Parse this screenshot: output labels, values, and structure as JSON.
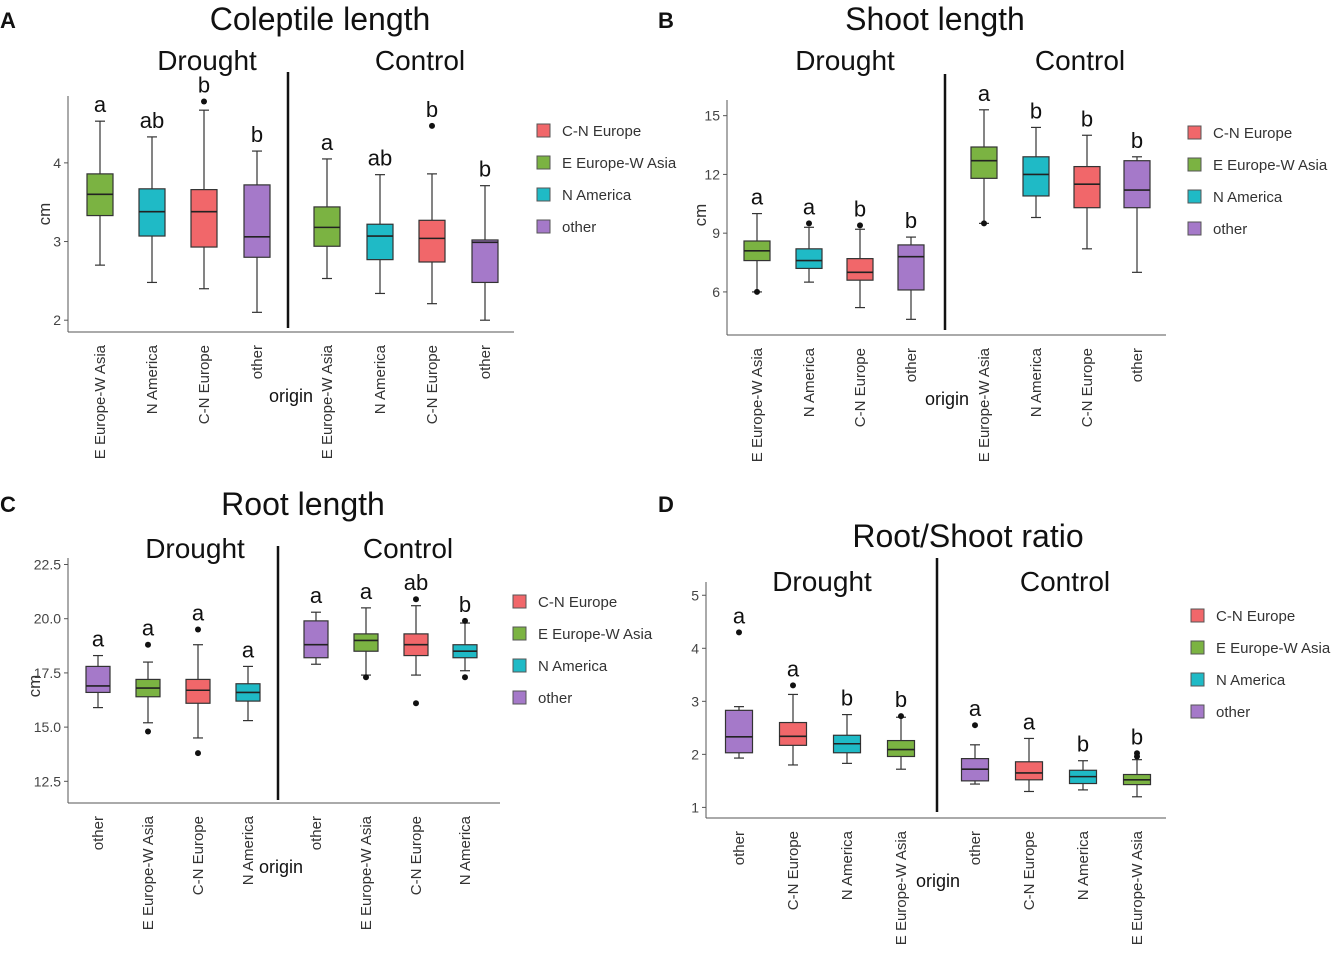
{
  "figure": {
    "group_labels": [
      "Drought",
      "Control"
    ],
    "x_axis_label": "origin",
    "y_axis_label": "cm",
    "legend_entries": [
      "C-N Europe",
      "E Europe-W Asia",
      "N America",
      "other"
    ]
  },
  "colors": {
    "C-N Europe": "#f1676a",
    "E Europe-W Asia": "#7bb342",
    "N America": "#1fbac6",
    "other": "#a579c9"
  },
  "chart_data": [
    {
      "panel": "A",
      "type": "boxplot",
      "title": "Coleptile length",
      "xlabel": "origin",
      "ylabel": "cm",
      "ylim": [
        1.85,
        4.85
      ],
      "yticks": [
        2,
        3,
        4
      ],
      "ytick_labels": [
        "2",
        "3",
        "4"
      ],
      "legend": [
        "C-N Europe",
        "E Europe-W Asia",
        "N America",
        "other"
      ],
      "groups": [
        {
          "name": "Drought",
          "boxes": [
            {
              "category": "E Europe-W Asia",
              "min": 2.7,
              "q1": 3.33,
              "median": 3.6,
              "q3": 3.86,
              "max": 4.53,
              "outliers": [],
              "sig": "a"
            },
            {
              "category": "N America",
              "min": 2.48,
              "q1": 3.07,
              "median": 3.38,
              "q3": 3.67,
              "max": 4.33,
              "outliers": [],
              "sig": "ab"
            },
            {
              "category": "C-N Europe",
              "min": 2.4,
              "q1": 2.93,
              "median": 3.38,
              "q3": 3.66,
              "max": 4.67,
              "outliers": [
                4.78
              ],
              "sig": "b"
            },
            {
              "category": "other",
              "min": 2.1,
              "q1": 2.8,
              "median": 3.06,
              "q3": 3.72,
              "max": 4.15,
              "outliers": [],
              "sig": "b"
            }
          ]
        },
        {
          "name": "Control",
          "boxes": [
            {
              "category": "E Europe-W Asia",
              "min": 2.53,
              "q1": 2.94,
              "median": 3.18,
              "q3": 3.44,
              "max": 4.05,
              "outliers": [],
              "sig": "a"
            },
            {
              "category": "N America",
              "min": 2.34,
              "q1": 2.77,
              "median": 3.07,
              "q3": 3.22,
              "max": 3.85,
              "outliers": [],
              "sig": "ab"
            },
            {
              "category": "C-N Europe",
              "min": 2.21,
              "q1": 2.74,
              "median": 3.04,
              "q3": 3.27,
              "max": 3.86,
              "outliers": [
                4.47
              ],
              "sig": "b"
            },
            {
              "category": "other",
              "min": 2.0,
              "q1": 2.48,
              "median": 2.99,
              "q3": 3.02,
              "max": 3.71,
              "outliers": [],
              "sig": "b"
            }
          ]
        }
      ]
    },
    {
      "panel": "B",
      "type": "boxplot",
      "title": "Shoot length",
      "xlabel": "origin",
      "ylabel": "cm",
      "ylim": [
        3.8,
        15.8
      ],
      "yticks": [
        6,
        9,
        12,
        15
      ],
      "ytick_labels": [
        "6",
        "9",
        "12",
        "15"
      ],
      "legend": [
        "C-N Europe",
        "E Europe-W Asia",
        "N America",
        "other"
      ],
      "groups": [
        {
          "name": "Drought",
          "boxes": [
            {
              "category": "E Europe-W Asia",
              "min": 6.0,
              "q1": 7.6,
              "median": 8.1,
              "q3": 8.6,
              "max": 10.0,
              "outliers": [
                6.0
              ],
              "sig": "a"
            },
            {
              "category": "N America",
              "min": 6.5,
              "q1": 7.2,
              "median": 7.6,
              "q3": 8.2,
              "max": 9.3,
              "outliers": [
                9.5
              ],
              "sig": "a"
            },
            {
              "category": "C-N Europe",
              "min": 5.2,
              "q1": 6.6,
              "median": 7.0,
              "q3": 7.7,
              "max": 9.2,
              "outliers": [
                9.4
              ],
              "sig": "b"
            },
            {
              "category": "other",
              "min": 4.6,
              "q1": 6.1,
              "median": 7.8,
              "q3": 8.4,
              "max": 8.8,
              "outliers": [],
              "sig": "b"
            }
          ]
        },
        {
          "name": "Control",
          "boxes": [
            {
              "category": "E Europe-W Asia",
              "min": 9.5,
              "q1": 11.8,
              "median": 12.7,
              "q3": 13.4,
              "max": 15.3,
              "outliers": [
                9.5
              ],
              "sig": "a"
            },
            {
              "category": "N America",
              "min": 9.8,
              "q1": 10.9,
              "median": 12.0,
              "q3": 12.9,
              "max": 14.4,
              "outliers": [],
              "sig": "b"
            },
            {
              "category": "C-N Europe",
              "min": 8.2,
              "q1": 10.3,
              "median": 11.5,
              "q3": 12.4,
              "max": 14.0,
              "outliers": [],
              "sig": "b"
            },
            {
              "category": "other",
              "min": 7.0,
              "q1": 10.3,
              "median": 11.2,
              "q3": 12.7,
              "max": 12.9,
              "outliers": [],
              "sig": "b"
            }
          ]
        }
      ]
    },
    {
      "panel": "C",
      "type": "boxplot",
      "title": "Root length",
      "xlabel": "origin",
      "ylabel": "cm",
      "ylim": [
        11.5,
        22.8
      ],
      "yticks": [
        12.5,
        15.0,
        17.5,
        20.0,
        22.5
      ],
      "ytick_labels": [
        "12.5",
        "15.0",
        "17.5",
        "20.0",
        "22.5"
      ],
      "legend": [
        "C-N Europe",
        "E Europe-W Asia",
        "N America",
        "other"
      ],
      "groups": [
        {
          "name": "Drought",
          "boxes": [
            {
              "category": "other",
              "min": 15.9,
              "q1": 16.6,
              "median": 16.9,
              "q3": 17.8,
              "max": 18.3,
              "outliers": [],
              "sig": "a"
            },
            {
              "category": "E Europe-W Asia",
              "min": 15.2,
              "q1": 16.4,
              "median": 16.8,
              "q3": 17.2,
              "max": 18.0,
              "outliers": [
                18.8,
                14.8
              ],
              "sig": "a"
            },
            {
              "category": "C-N Europe",
              "min": 14.5,
              "q1": 16.1,
              "median": 16.7,
              "q3": 17.2,
              "max": 18.8,
              "outliers": [
                19.5,
                13.8
              ],
              "sig": "a"
            },
            {
              "category": "N America",
              "min": 15.3,
              "q1": 16.2,
              "median": 16.6,
              "q3": 17.0,
              "max": 17.8,
              "outliers": [],
              "sig": "a"
            }
          ]
        },
        {
          "name": "Control",
          "boxes": [
            {
              "category": "other",
              "min": 17.9,
              "q1": 18.2,
              "median": 18.8,
              "q3": 19.9,
              "max": 20.3,
              "outliers": [],
              "sig": "a"
            },
            {
              "category": "E Europe-W Asia",
              "min": 17.4,
              "q1": 18.5,
              "median": 19.0,
              "q3": 19.3,
              "max": 20.5,
              "outliers": [
                17.3
              ],
              "sig": "a"
            },
            {
              "category": "C-N Europe",
              "min": 17.4,
              "q1": 18.3,
              "median": 18.8,
              "q3": 19.3,
              "max": 20.6,
              "outliers": [
                20.9,
                16.1
              ],
              "sig": "ab"
            },
            {
              "category": "N America",
              "min": 17.6,
              "q1": 18.2,
              "median": 18.5,
              "q3": 18.8,
              "max": 19.8,
              "outliers": [
                19.9,
                17.3
              ],
              "sig": "b"
            }
          ]
        }
      ]
    },
    {
      "panel": "D",
      "type": "boxplot",
      "title": "Root/Shoot ratio",
      "xlabel": "origin",
      "ylabel": "",
      "ylim": [
        0.8,
        5.25
      ],
      "yticks": [
        1,
        2,
        3,
        4,
        5
      ],
      "ytick_labels": [
        "1",
        "2",
        "3",
        "4",
        "5"
      ],
      "legend": [
        "C-N Europe",
        "E Europe-W Asia",
        "N America",
        "other"
      ],
      "groups": [
        {
          "name": "Drought",
          "boxes": [
            {
              "category": "other",
              "min": 1.93,
              "q1": 2.03,
              "median": 2.33,
              "q3": 2.83,
              "max": 2.9,
              "outliers": [
                4.3
              ],
              "sig": "a"
            },
            {
              "category": "C-N Europe",
              "min": 1.8,
              "q1": 2.17,
              "median": 2.34,
              "q3": 2.6,
              "max": 3.13,
              "outliers": [
                3.3
              ],
              "sig": "a"
            },
            {
              "category": "N America",
              "min": 1.83,
              "q1": 2.03,
              "median": 2.2,
              "q3": 2.36,
              "max": 2.75,
              "outliers": [],
              "sig": "b"
            },
            {
              "category": "E Europe-W Asia",
              "min": 1.72,
              "q1": 1.96,
              "median": 2.09,
              "q3": 2.26,
              "max": 2.7,
              "outliers": [
                2.72
              ],
              "sig": "b"
            }
          ]
        },
        {
          "name": "Control",
          "boxes": [
            {
              "category": "other",
              "min": 1.44,
              "q1": 1.5,
              "median": 1.72,
              "q3": 1.92,
              "max": 2.18,
              "outliers": [
                2.55
              ],
              "sig": "a"
            },
            {
              "category": "C-N Europe",
              "min": 1.3,
              "q1": 1.52,
              "median": 1.65,
              "q3": 1.86,
              "max": 2.3,
              "outliers": [],
              "sig": "a"
            },
            {
              "category": "N America",
              "min": 1.33,
              "q1": 1.45,
              "median": 1.58,
              "q3": 1.7,
              "max": 1.88,
              "outliers": [],
              "sig": "b"
            },
            {
              "category": "E Europe-W Asia",
              "min": 1.2,
              "q1": 1.43,
              "median": 1.52,
              "q3": 1.62,
              "max": 1.9,
              "outliers": [
                2.02,
                1.96
              ],
              "sig": "b"
            }
          ]
        }
      ]
    }
  ]
}
